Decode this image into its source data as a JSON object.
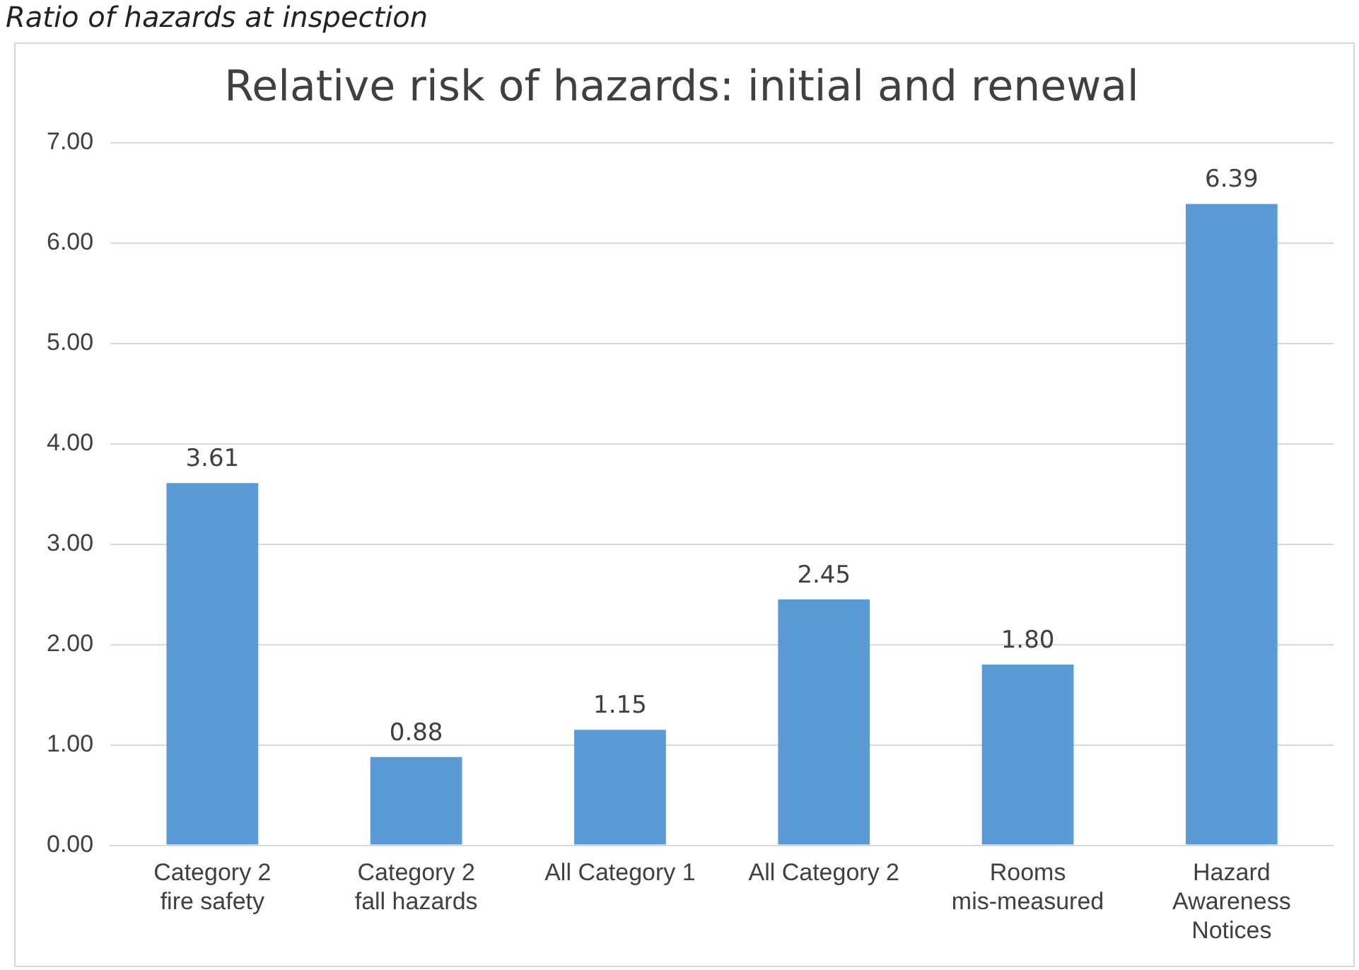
{
  "chart_data": {
    "type": "bar",
    "title": "Relative risk of hazards: initial and renewal",
    "annotations": [
      "Ratio of hazards at inspection"
    ],
    "categories": [
      "Category 2 fire safety",
      "Category 2 fall hazards",
      "All Category 1",
      "All Category 2",
      "Rooms mis-measured",
      "Hazard Awareness Notices"
    ],
    "values": [
      3.61,
      0.88,
      1.15,
      2.45,
      1.8,
      6.39
    ],
    "value_labels": [
      "3.61",
      "0.88",
      "1.15",
      "2.45",
      "1.80",
      "6.39"
    ],
    "color": "#5b9bd5",
    "ylim": [
      0,
      7
    ],
    "yticks": [
      {
        "value": 0,
        "label": "0.00"
      },
      {
        "value": 1,
        "label": "1.00"
      },
      {
        "value": 2,
        "label": "2.00"
      },
      {
        "value": 3,
        "label": "3.00"
      },
      {
        "value": 4,
        "label": "4.00"
      },
      {
        "value": 5,
        "label": "5.00"
      },
      {
        "value": 6,
        "label": "6.00"
      },
      {
        "value": 7,
        "label": "7.00"
      }
    ],
    "grid": "y",
    "legend": false
  }
}
